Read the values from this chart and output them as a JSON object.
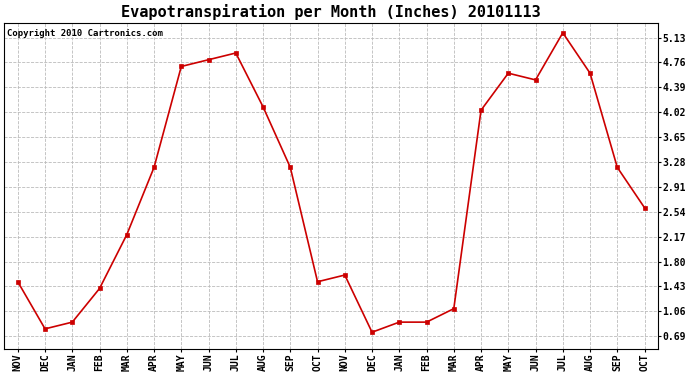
{
  "title": "Evapotranspiration per Month (Inches) 20101113",
  "copyright_text": "Copyright 2010 Cartronics.com",
  "months": [
    "NOV",
    "DEC",
    "JAN",
    "FEB",
    "MAR",
    "APR",
    "MAY",
    "JUN",
    "JUL",
    "AUG",
    "SEP",
    "OCT",
    "NOV",
    "DEC",
    "JAN",
    "FEB",
    "MAR",
    "APR",
    "MAY",
    "JUN",
    "JUL",
    "AUG",
    "SEP",
    "OCT"
  ],
  "values": [
    1.5,
    0.8,
    0.9,
    1.4,
    2.2,
    3.2,
    4.7,
    4.8,
    4.9,
    4.1,
    3.2,
    1.5,
    1.6,
    0.75,
    0.9,
    0.9,
    1.1,
    4.05,
    4.6,
    4.5,
    5.2,
    4.6,
    3.2,
    2.6
  ],
  "line_color": "#cc0000",
  "marker": "s",
  "marker_size": 3,
  "yticks": [
    0.69,
    1.06,
    1.43,
    1.8,
    2.17,
    2.54,
    2.91,
    3.28,
    3.65,
    4.02,
    4.39,
    4.76,
    5.13
  ],
  "ylim": [
    0.5,
    5.35
  ],
  "background_color": "#ffffff",
  "grid_color": "#bbbbbb",
  "title_fontsize": 11,
  "tick_fontsize": 7,
  "copyright_fontsize": 6.5
}
